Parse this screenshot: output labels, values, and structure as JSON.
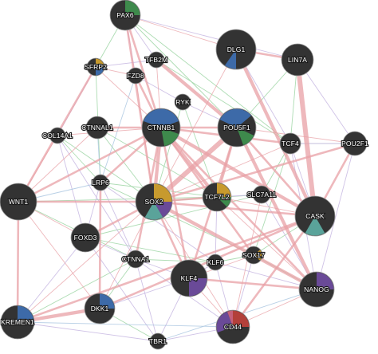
{
  "colors": {
    "background": "#ffffff",
    "node_fill": "#333333",
    "edge_pink": "#e8a0a6",
    "edge_green": "#9fd6a6",
    "edge_lavender": "#c7b7e2",
    "edge_blue": "#a8c4e0",
    "slice_green": "#3e8a4c",
    "slice_blue": "#3d6aa8",
    "slice_gold": "#c79a2e",
    "slice_purple": "#6a4a98",
    "slice_teal": "#5aa39a",
    "slice_red": "#b3403a",
    "slice_pink": "#c5607a"
  },
  "nodes": [
    {
      "id": "PAX6",
      "label": "PAX6"
    },
    {
      "id": "DLG1",
      "label": "DLG1"
    },
    {
      "id": "LIN7A",
      "label": "LIN7A"
    },
    {
      "id": "SFRP2",
      "label": "SFRP2"
    },
    {
      "id": "TFB2M",
      "label": "TFB2M"
    },
    {
      "id": "FZD8",
      "label": "FZD8"
    },
    {
      "id": "RYK",
      "label": "RYK"
    },
    {
      "id": "COL14A1",
      "label": "COL14A1"
    },
    {
      "id": "CTNNAL1",
      "label": "CTNNAL1"
    },
    {
      "id": "CTNNB1",
      "label": "CTNNB1"
    },
    {
      "id": "POU5F1",
      "label": "POU5F1"
    },
    {
      "id": "TCF4",
      "label": "TCF4"
    },
    {
      "id": "POU2F1",
      "label": "POU2F1"
    },
    {
      "id": "LRP6",
      "label": "LRP6"
    },
    {
      "id": "WNT1",
      "label": "WNT1"
    },
    {
      "id": "SOX2",
      "label": "SOX2"
    },
    {
      "id": "TCF7L2",
      "label": "TCF7L2"
    },
    {
      "id": "SLC7A11",
      "label": "SLC7A11"
    },
    {
      "id": "CASK",
      "label": "CASK"
    },
    {
      "id": "FOXD3",
      "label": "FOXD3"
    },
    {
      "id": "CTNNA1",
      "label": "CTNNA1"
    },
    {
      "id": "KLF6",
      "label": "KLF6"
    },
    {
      "id": "SOX17",
      "label": "SOX17"
    },
    {
      "id": "KLF4",
      "label": "KLF4"
    },
    {
      "id": "NANOG",
      "label": "NANOG"
    },
    {
      "id": "DKK1",
      "label": "DKK1"
    },
    {
      "id": "KREMEN1",
      "label": "KREMEN1"
    },
    {
      "id": "CD44",
      "label": "CD44"
    },
    {
      "id": "TBR1",
      "label": "TBR1"
    }
  ],
  "edges": [
    {
      "a": "CTNNB1",
      "b": "CASK",
      "type": "pink",
      "weight": 3
    },
    {
      "a": "CTNNB1",
      "b": "SOX2",
      "type": "pink",
      "weight": 3
    },
    {
      "a": "CTNNB1",
      "b": "TCF7L2",
      "type": "pink",
      "weight": 3
    },
    {
      "a": "CTNNB1",
      "b": "WNT1",
      "type": "pink",
      "weight": 2
    },
    {
      "a": "CTNNB1",
      "b": "LRP6",
      "type": "pink",
      "weight": 2
    },
    {
      "a": "CTNNB1",
      "b": "KLF4",
      "type": "pink",
      "weight": 2
    },
    {
      "a": "CTNNB1",
      "b": "NANOG",
      "type": "pink",
      "weight": 2
    },
    {
      "a": "PAX6",
      "b": "SOX2",
      "type": "pink",
      "weight": 2
    },
    {
      "a": "PAX6",
      "b": "CTNNB1",
      "type": "pink",
      "weight": 2
    },
    {
      "a": "PAX6",
      "b": "DLG1",
      "type": "pink",
      "weight": 1
    },
    {
      "a": "DLG1",
      "b": "CASK",
      "type": "pink",
      "weight": 3
    },
    {
      "a": "DLG1",
      "b": "LIN7A",
      "type": "pink",
      "weight": 2
    },
    {
      "a": "DLG1",
      "b": "SOX2",
      "type": "pink",
      "weight": 1
    },
    {
      "a": "LIN7A",
      "b": "CASK",
      "type": "pink",
      "weight": 4
    },
    {
      "a": "POU5F1",
      "b": "SOX2",
      "type": "pink",
      "weight": 4
    },
    {
      "a": "POU5F1",
      "b": "NANOG",
      "type": "pink",
      "weight": 3
    },
    {
      "a": "POU5F1",
      "b": "KLF4",
      "type": "pink",
      "weight": 2
    },
    {
      "a": "POU5F1",
      "b": "CTNNB1",
      "type": "pink",
      "weight": 2
    },
    {
      "a": "POU5F1",
      "b": "TCF7L2",
      "type": "pink",
      "weight": 2
    },
    {
      "a": "POU5F1",
      "b": "CASK",
      "type": "pink",
      "weight": 2
    },
    {
      "a": "SOX2",
      "b": "NANOG",
      "type": "pink",
      "weight": 3
    },
    {
      "a": "SOX2",
      "b": "KLF4",
      "type": "pink",
      "weight": 2
    },
    {
      "a": "SOX2",
      "b": "CASK",
      "type": "pink",
      "weight": 2
    },
    {
      "a": "SOX2",
      "b": "FOXD3",
      "type": "pink",
      "weight": 2
    },
    {
      "a": "SOX2",
      "b": "TCF7L2",
      "type": "pink",
      "weight": 2
    },
    {
      "a": "SOX2",
      "b": "WNT1",
      "type": "pink",
      "weight": 2
    },
    {
      "a": "POU2F1",
      "b": "CASK",
      "type": "pink",
      "weight": 2
    },
    {
      "a": "POU2F1",
      "b": "SOX2",
      "type": "pink",
      "weight": 2
    },
    {
      "a": "POU2F1",
      "b": "POU5F1",
      "type": "pink",
      "weight": 1
    },
    {
      "a": "TCF4",
      "b": "CTNNB1",
      "type": "pink",
      "weight": 2
    },
    {
      "a": "TCF4",
      "b": "SOX2",
      "type": "pink",
      "weight": 1
    },
    {
      "a": "CASK",
      "b": "KREMEN1",
      "type": "pink",
      "weight": 2
    },
    {
      "a": "CASK",
      "b": "DKK1",
      "type": "pink",
      "weight": 2
    },
    {
      "a": "CASK",
      "b": "CD44",
      "type": "pink",
      "weight": 2
    },
    {
      "a": "WNT1",
      "b": "KREMEN1",
      "type": "pink",
      "weight": 2
    },
    {
      "a": "WNT1",
      "b": "DKK1",
      "type": "pink",
      "weight": 1
    },
    {
      "a": "WNT1",
      "b": "FOXD3",
      "type": "pink",
      "weight": 1
    },
    {
      "a": "DKK1",
      "b": "KREMEN1",
      "type": "pink",
      "weight": 3
    },
    {
      "a": "DKK1",
      "b": "LRP6",
      "type": "pink",
      "weight": 2
    },
    {
      "a": "DKK1",
      "b": "SOX2",
      "type": "pink",
      "weight": 1
    },
    {
      "a": "SFRP2",
      "b": "WNT1",
      "type": "pink",
      "weight": 2
    },
    {
      "a": "SFRP2",
      "b": "CTNNB1",
      "type": "pink",
      "weight": 1
    },
    {
      "a": "SFRP2",
      "b": "FZD8",
      "type": "pink",
      "weight": 1
    },
    {
      "a": "FZD8",
      "b": "CTNNB1",
      "type": "pink",
      "weight": 2
    },
    {
      "a": "FZD8",
      "b": "SOX2",
      "type": "pink",
      "weight": 1
    },
    {
      "a": "TFB2M",
      "b": "POU5F1",
      "type": "pink",
      "weight": 3
    },
    {
      "a": "TFB2M",
      "b": "CTNNB1",
      "type": "pink",
      "weight": 1
    },
    {
      "a": "CTNNAL1",
      "b": "CTNNB1",
      "type": "pink",
      "weight": 2
    },
    {
      "a": "CTNNAL1",
      "b": "WNT1",
      "type": "pink",
      "weight": 1
    },
    {
      "a": "COL14A1",
      "b": "WNT1",
      "type": "pink",
      "weight": 1
    },
    {
      "a": "COL14A1",
      "b": "CTNNB1",
      "type": "pink",
      "weight": 1
    },
    {
      "a": "KLF4",
      "b": "NANOG",
      "type": "pink",
      "weight": 2
    },
    {
      "a": "KLF4",
      "b": "CD44",
      "type": "pink",
      "weight": 1
    },
    {
      "a": "CD44",
      "b": "NANOG",
      "type": "pink",
      "weight": 1
    },
    {
      "a": "CD44",
      "b": "SOX2",
      "type": "pink",
      "weight": 1
    },
    {
      "a": "SOX17",
      "b": "CTNNB1",
      "type": "pink",
      "weight": 2
    },
    {
      "a": "SOX17",
      "b": "KLF4",
      "type": "pink",
      "weight": 1
    },
    {
      "a": "SLC7A11",
      "b": "CD44",
      "type": "pink",
      "weight": 1
    },
    {
      "a": "TCF7L2",
      "b": "CASK",
      "type": "pink",
      "weight": 1
    },
    {
      "a": "TCF7L2",
      "b": "NANOG",
      "type": "pink",
      "weight": 1
    },
    {
      "a": "CTNNA1",
      "b": "CTNNB1",
      "type": "pink",
      "weight": 2
    },
    {
      "a": "KREMEN1",
      "b": "SOX2",
      "type": "pink",
      "weight": 1
    },
    {
      "a": "PAX6",
      "b": "SFRP2",
      "type": "green",
      "weight": 1
    },
    {
      "a": "PAX6",
      "b": "POU5F1",
      "type": "green",
      "weight": 1
    },
    {
      "a": "PAX6",
      "b": "TCF4",
      "type": "green",
      "weight": 1
    },
    {
      "a": "SFRP2",
      "b": "LRP6",
      "type": "green",
      "weight": 1
    },
    {
      "a": "COL14A1",
      "b": "SOX2",
      "type": "green",
      "weight": 1
    },
    {
      "a": "COL14A1",
      "b": "LRP6",
      "type": "green",
      "weight": 1
    },
    {
      "a": "CTNNAL1",
      "b": "SOX2",
      "type": "green",
      "weight": 1
    },
    {
      "a": "CTNNAL1",
      "b": "TCF7L2",
      "type": "green",
      "weight": 1
    },
    {
      "a": "LRP6",
      "b": "SOX17",
      "type": "green",
      "weight": 1
    },
    {
      "a": "LRP6",
      "b": "TCF7L2",
      "type": "green",
      "weight": 1
    },
    {
      "a": "WNT1",
      "b": "TCF7L2",
      "type": "green",
      "weight": 1
    },
    {
      "a": "WNT1",
      "b": "CTNNA1",
      "type": "green",
      "weight": 1
    },
    {
      "a": "FOXD3",
      "b": "KLF6",
      "type": "green",
      "weight": 1
    },
    {
      "a": "FOXD3",
      "b": "SLC7A11",
      "type": "green",
      "weight": 1
    },
    {
      "a": "RYK",
      "b": "TCF7L2",
      "type": "green",
      "weight": 1
    },
    {
      "a": "RYK",
      "b": "SOX2",
      "type": "green",
      "weight": 1
    },
    {
      "a": "TFB2M",
      "b": "TCF4",
      "type": "green",
      "weight": 1
    },
    {
      "a": "LIN7A",
      "b": "POU5F1",
      "type": "green",
      "weight": 1
    },
    {
      "a": "LIN7A",
      "b": "TCF4",
      "type": "green",
      "weight": 1
    },
    {
      "a": "SLC7A11",
      "b": "TCF4",
      "type": "green",
      "weight": 1
    },
    {
      "a": "SLC7A11",
      "b": "SOX2",
      "type": "green",
      "weight": 1
    },
    {
      "a": "KLF6",
      "b": "SOX17",
      "type": "green",
      "weight": 1
    },
    {
      "a": "KLF6",
      "b": "CTNNA1",
      "type": "green",
      "weight": 1
    },
    {
      "a": "SOX17",
      "b": "NANOG",
      "type": "green",
      "weight": 1
    },
    {
      "a": "SOX17",
      "b": "TCF4",
      "type": "green",
      "weight": 1
    },
    {
      "a": "DKK1",
      "b": "TBR1",
      "type": "green",
      "weight": 1
    },
    {
      "a": "CTNNA1",
      "b": "DKK1",
      "type": "green",
      "weight": 1
    },
    {
      "a": "KREMEN1",
      "b": "CTNNA1",
      "type": "green",
      "weight": 1
    },
    {
      "a": "POU2F1",
      "b": "TCF4",
      "type": "green",
      "weight": 1
    },
    {
      "a": "CASK",
      "b": "SOX17",
      "type": "green",
      "weight": 1
    },
    {
      "a": "PAX6",
      "b": "LIN7A",
      "type": "lavender",
      "weight": 1
    },
    {
      "a": "PAX6",
      "b": "TFB2M",
      "type": "lavender",
      "weight": 1
    },
    {
      "a": "PAX6",
      "b": "FZD8",
      "type": "lavender",
      "weight": 1
    },
    {
      "a": "SFRP2",
      "b": "TFB2M",
      "type": "lavender",
      "weight": 1
    },
    {
      "a": "SFRP2",
      "b": "COL14A1",
      "type": "lavender",
      "weight": 1
    },
    {
      "a": "COL14A1",
      "b": "FOXD3",
      "type": "lavender",
      "weight": 1
    },
    {
      "a": "COL14A1",
      "b": "CTNNA1",
      "type": "lavender",
      "weight": 1
    },
    {
      "a": "LRP6",
      "b": "FOXD3",
      "type": "lavender",
      "weight": 1
    },
    {
      "a": "LRP6",
      "b": "KLF6",
      "type": "lavender",
      "weight": 1
    },
    {
      "a": "LRP6",
      "b": "CTNNA1",
      "type": "lavender",
      "weight": 1
    },
    {
      "a": "FOXD3",
      "b": "CTNNA1",
      "type": "lavender",
      "weight": 1
    },
    {
      "a": "FOXD3",
      "b": "TBR1",
      "type": "lavender",
      "weight": 1
    },
    {
      "a": "FOXD3",
      "b": "KREMEN1",
      "type": "lavender",
      "weight": 1
    },
    {
      "a": "CTNNA1",
      "b": "KLF4",
      "type": "lavender",
      "weight": 1
    },
    {
      "a": "CTNNA1",
      "b": "TBR1",
      "type": "lavender",
      "weight": 1
    },
    {
      "a": "CTNNA1",
      "b": "CD44",
      "type": "lavender",
      "weight": 1
    },
    {
      "a": "KLF6",
      "b": "KLF4",
      "type": "lavender",
      "weight": 1
    },
    {
      "a": "KLF6",
      "b": "CD44",
      "type": "lavender",
      "weight": 1
    },
    {
      "a": "KLF6",
      "b": "NANOG",
      "type": "lavender",
      "weight": 1
    },
    {
      "a": "TBR1",
      "b": "CD44",
      "type": "lavender",
      "weight": 1
    },
    {
      "a": "TBR1",
      "b": "KREMEN1",
      "type": "lavender",
      "weight": 1
    },
    {
      "a": "TBR1",
      "b": "KLF4",
      "type": "lavender",
      "weight": 1
    },
    {
      "a": "KLF4",
      "b": "DKK1",
      "type": "lavender",
      "weight": 1
    },
    {
      "a": "TCF4",
      "b": "POU2F1",
      "type": "lavender",
      "weight": 1
    },
    {
      "a": "TCF4",
      "b": "NANOG",
      "type": "lavender",
      "weight": 1
    },
    {
      "a": "TCF4",
      "b": "CASK",
      "type": "lavender",
      "weight": 1
    },
    {
      "a": "POU2F1",
      "b": "NANOG",
      "type": "lavender",
      "weight": 1
    },
    {
      "a": "LIN7A",
      "b": "POU2F1",
      "type": "lavender",
      "weight": 1
    },
    {
      "a": "DLG1",
      "b": "TCF4",
      "type": "lavender",
      "weight": 1
    },
    {
      "a": "RYK",
      "b": "FZD8",
      "type": "lavender",
      "weight": 1
    },
    {
      "a": "RYK",
      "b": "POU5F1",
      "type": "lavender",
      "weight": 1
    },
    {
      "a": "SLC7A11",
      "b": "NANOG",
      "type": "lavender",
      "weight": 1
    },
    {
      "a": "SOX17",
      "b": "CD44",
      "type": "lavender",
      "weight": 1
    },
    {
      "a": "TCF7L2",
      "b": "KLF6",
      "type": "lavender",
      "weight": 1
    },
    {
      "a": "TCF7L2",
      "b": "SLC7A11",
      "type": "lavender",
      "weight": 1
    },
    {
      "a": "CTNNAL1",
      "b": "LRP6",
      "type": "blue",
      "weight": 1
    },
    {
      "a": "FZD8",
      "b": "LRP6",
      "type": "blue",
      "weight": 1
    },
    {
      "a": "WNT1",
      "b": "LRP6",
      "type": "blue",
      "weight": 1
    },
    {
      "a": "TBR1",
      "b": "NANOG",
      "type": "blue",
      "weight": 1
    },
    {
      "a": "CD44",
      "b": "KREMEN1",
      "type": "blue",
      "weight": 1
    }
  ]
}
